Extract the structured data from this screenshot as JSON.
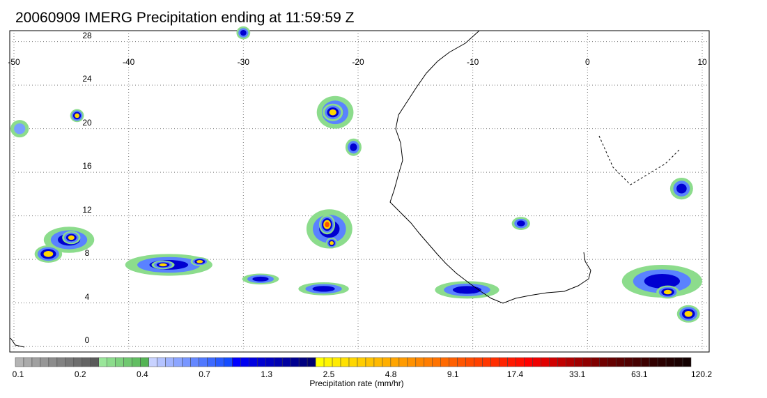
{
  "title": "20060909 IMERG Precipitation ending at 11:59:59 Z",
  "lon_labels": [
    "-50",
    "-40",
    "-30",
    "-20",
    "-10",
    "0",
    "10"
  ],
  "lat_labels": [
    "28",
    "24",
    "20",
    "16",
    "12",
    "8",
    "4",
    "0"
  ],
  "colorbar": {
    "title": "Precipitation rate (mm/hr)",
    "tick_labels": [
      "0.1",
      "0.2",
      "0.4",
      "0.7",
      "1.3",
      "2.5",
      "4.8",
      "9.1",
      "17.4",
      "33.1",
      "63.1",
      "120.2"
    ],
    "colors": [
      "#b4b4b4",
      "#aaaaaa",
      "#a0a0a0",
      "#969696",
      "#8c8c8c",
      "#828282",
      "#787878",
      "#6e6e6e",
      "#646464",
      "#5a5a5a",
      "#9ae69a",
      "#8cdc8c",
      "#7ed27e",
      "#70c870",
      "#62be62",
      "#54b454",
      "#c8d2ff",
      "#b4c3ff",
      "#a0b4ff",
      "#8ca5ff",
      "#7896ff",
      "#6487ff",
      "#5078ff",
      "#3c69ff",
      "#285aff",
      "#144bff",
      "#0000ff",
      "#0000f0",
      "#0000e0",
      "#0000d0",
      "#0000c0",
      "#0000b0",
      "#0000a0",
      "#000090",
      "#000080",
      "#000070",
      "#ffff00",
      "#fff500",
      "#ffeb00",
      "#ffe100",
      "#ffd700",
      "#ffcd00",
      "#ffc300",
      "#ffb900",
      "#ffaf00",
      "#ffa500",
      "#ff9b00",
      "#ff9100",
      "#ff8700",
      "#ff7d00",
      "#ff7300",
      "#ff6900",
      "#ff5f00",
      "#ff5500",
      "#ff4b00",
      "#ff4100",
      "#ff3700",
      "#ff2d00",
      "#ff2300",
      "#ff1900",
      "#ff0f00",
      "#ff0000",
      "#f00000",
      "#e00000",
      "#d00000",
      "#c00000",
      "#b00000",
      "#a00000",
      "#900000",
      "#800000",
      "#700000",
      "#650000",
      "#5a0000",
      "#500000",
      "#460000",
      "#3c0000",
      "#320000",
      "#2a0000",
      "#220000",
      "#1a0000",
      "#120000"
    ]
  },
  "map": {
    "lon_range": [
      -50,
      10
    ],
    "lat_range": [
      -0.5,
      29
    ],
    "grid": true,
    "precip_cells": [
      {
        "lon": -45.2,
        "lat": 9.8,
        "rx": 2.2,
        "ry": 1.2,
        "level": 2
      },
      {
        "lon": -47.0,
        "lat": 8.5,
        "rx": 1.2,
        "ry": 0.8,
        "level": 3
      },
      {
        "lon": -45.0,
        "lat": 10.0,
        "rx": 0.8,
        "ry": 0.6,
        "level": 3
      },
      {
        "lon": -44.5,
        "lat": 21.2,
        "rx": 0.6,
        "ry": 0.6,
        "level": 3
      },
      {
        "lon": -36.5,
        "lat": 7.5,
        "rx": 3.8,
        "ry": 1.0,
        "level": 2
      },
      {
        "lon": -37.0,
        "lat": 7.5,
        "rx": 1.0,
        "ry": 0.4,
        "level": 3
      },
      {
        "lon": -33.8,
        "lat": 7.8,
        "rx": 0.8,
        "ry": 0.4,
        "level": 3
      },
      {
        "lon": -28.5,
        "lat": 6.2,
        "rx": 1.6,
        "ry": 0.5,
        "level": 2
      },
      {
        "lon": -22.5,
        "lat": 10.8,
        "rx": 2.0,
        "ry": 1.8,
        "level": 2
      },
      {
        "lon": -22.7,
        "lat": 11.2,
        "rx": 0.7,
        "ry": 0.9,
        "level": 4
      },
      {
        "lon": -22.3,
        "lat": 9.5,
        "rx": 0.5,
        "ry": 0.5,
        "level": 3
      },
      {
        "lon": -22.0,
        "lat": 21.5,
        "rx": 1.6,
        "ry": 1.5,
        "level": 2
      },
      {
        "lon": -22.2,
        "lat": 21.5,
        "rx": 0.9,
        "ry": 0.8,
        "level": 3
      },
      {
        "lon": -23.0,
        "lat": 5.3,
        "rx": 2.2,
        "ry": 0.6,
        "level": 2
      },
      {
        "lon": -20.4,
        "lat": 18.3,
        "rx": 0.7,
        "ry": 0.8,
        "level": 2
      },
      {
        "lon": -10.5,
        "lat": 5.2,
        "rx": 2.8,
        "ry": 0.8,
        "level": 2
      },
      {
        "lon": -5.8,
        "lat": 11.3,
        "rx": 0.8,
        "ry": 0.6,
        "level": 2
      },
      {
        "lon": 8.2,
        "lat": 14.5,
        "rx": 1.0,
        "ry": 1.0,
        "level": 2
      },
      {
        "lon": 6.5,
        "lat": 6.0,
        "rx": 3.5,
        "ry": 1.5,
        "level": 2
      },
      {
        "lon": 8.8,
        "lat": 3.0,
        "rx": 1.0,
        "ry": 0.8,
        "level": 3
      },
      {
        "lon": 7.0,
        "lat": 5.0,
        "rx": 1.0,
        "ry": 0.6,
        "level": 3
      },
      {
        "lon": -30.0,
        "lat": 28.8,
        "rx": 0.6,
        "ry": 0.6,
        "level": 2
      },
      {
        "lon": -49.5,
        "lat": 20.0,
        "rx": 0.8,
        "ry": 0.8,
        "level": 1
      }
    ]
  }
}
